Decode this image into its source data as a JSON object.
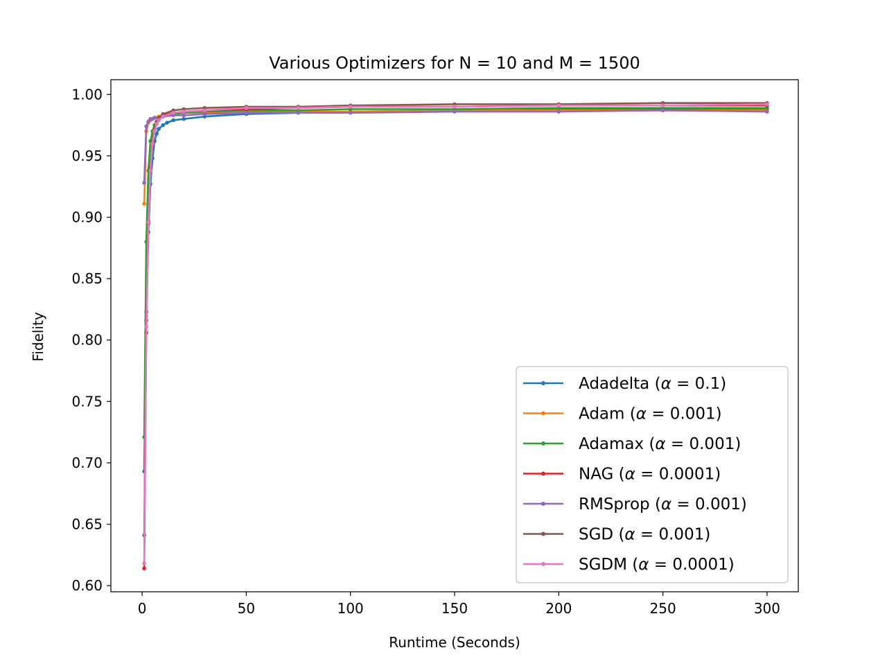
{
  "chart_data": {
    "type": "line",
    "title": "Various Optimizers for N = 10 and M = 1500",
    "xlabel": "Runtime (Seconds)",
    "ylabel": "Fidelity",
    "xlim": [
      -15,
      315
    ],
    "ylim": [
      0.595,
      1.012
    ],
    "xticks": [
      0,
      50,
      100,
      150,
      200,
      250,
      300
    ],
    "xtick_labels": [
      "0",
      "50",
      "100",
      "150",
      "200",
      "250",
      "300"
    ],
    "yticks": [
      0.6,
      0.65,
      0.7,
      0.75,
      0.8,
      0.85,
      0.9,
      0.95,
      1.0
    ],
    "ytick_labels": [
      "0.60",
      "0.65",
      "0.70",
      "0.75",
      "0.80",
      "0.85",
      "0.90",
      "0.95",
      "1.00"
    ],
    "grid": false,
    "legend_position": "lower-right",
    "series": [
      {
        "name": "Adadelta (α = 0.1)",
        "legend_prefix": "Adadelta (",
        "legend_suffix": " = 0.1)",
        "color": "#1f77b4",
        "x": [
          1,
          2,
          3,
          4,
          5,
          6,
          7,
          8,
          10,
          12,
          15,
          20,
          30,
          50,
          75,
          100,
          150,
          200,
          250,
          300
        ],
        "y": [
          0.693,
          0.823,
          0.888,
          0.927,
          0.948,
          0.962,
          0.968,
          0.972,
          0.975,
          0.977,
          0.979,
          0.98,
          0.982,
          0.984,
          0.985,
          0.986,
          0.987,
          0.988,
          0.988,
          0.988
        ]
      },
      {
        "name": "Adam (α = 0.001)",
        "legend_prefix": "Adam (",
        "legend_suffix": " = 0.001)",
        "color": "#ff7f0e",
        "x": [
          1,
          2,
          3,
          4,
          5,
          6,
          8,
          10,
          15,
          20,
          30,
          50,
          75,
          100,
          150,
          200,
          250,
          300
        ],
        "y": [
          0.911,
          0.97,
          0.977,
          0.979,
          0.98,
          0.981,
          0.982,
          0.983,
          0.984,
          0.985,
          0.985,
          0.986,
          0.986,
          0.986,
          0.987,
          0.987,
          0.987,
          0.987
        ]
      },
      {
        "name": "Adamax (α = 0.001)",
        "legend_prefix": "Adamax (",
        "legend_suffix": " = 0.001)",
        "color": "#2ca02c",
        "x": [
          1,
          2,
          3,
          4,
          5,
          6,
          7,
          8,
          10,
          15,
          20,
          30,
          50,
          75,
          100,
          150,
          200,
          250,
          300
        ],
        "y": [
          0.721,
          0.88,
          0.938,
          0.962,
          0.97,
          0.975,
          0.978,
          0.98,
          0.982,
          0.984,
          0.985,
          0.986,
          0.987,
          0.987,
          0.988,
          0.988,
          0.989,
          0.989,
          0.989
        ]
      },
      {
        "name": "NAG (α = 0.0001)",
        "legend_prefix": "NAG (",
        "legend_suffix": " = 0.0001)",
        "color": "#d62728",
        "x": [
          1,
          2,
          3,
          4,
          5,
          6,
          7,
          8,
          10,
          15,
          20,
          30,
          50,
          75,
          100,
          150,
          200,
          250,
          300
        ],
        "y": [
          0.614,
          0.806,
          0.895,
          0.94,
          0.962,
          0.972,
          0.977,
          0.98,
          0.983,
          0.985,
          0.986,
          0.987,
          0.988,
          0.989,
          0.99,
          0.99,
          0.991,
          0.991,
          0.991
        ]
      },
      {
        "name": "RMSprop (α = 0.001)",
        "legend_prefix": "RMSprop (",
        "legend_suffix": " = 0.001)",
        "color": "#9467bd",
        "x": [
          1,
          2,
          3,
          4,
          5,
          6,
          8,
          10,
          15,
          20,
          30,
          50,
          75,
          100,
          150,
          200,
          250,
          300
        ],
        "y": [
          0.928,
          0.974,
          0.978,
          0.98,
          0.98,
          0.981,
          0.981,
          0.982,
          0.983,
          0.983,
          0.984,
          0.985,
          0.985,
          0.985,
          0.986,
          0.986,
          0.987,
          0.986
        ]
      },
      {
        "name": "SGD (α = 0.001)",
        "legend_prefix": "SGD (",
        "legend_suffix": " = 0.001)",
        "color": "#8c564b",
        "x": [
          1,
          2,
          3,
          4,
          5,
          6,
          7,
          8,
          10,
          15,
          20,
          30,
          50,
          75,
          100,
          150,
          200,
          250,
          300
        ],
        "y": [
          0.641,
          0.816,
          0.897,
          0.94,
          0.962,
          0.972,
          0.978,
          0.981,
          0.984,
          0.987,
          0.988,
          0.989,
          0.99,
          0.99,
          0.991,
          0.992,
          0.992,
          0.993,
          0.993
        ]
      },
      {
        "name": "SGDM (α = 0.0001)",
        "legend_prefix": "SGDM (",
        "legend_suffix": " = 0.0001)",
        "color": "#e377c2",
        "x": [
          1,
          2,
          3,
          4,
          5,
          6,
          7,
          8,
          10,
          15,
          20,
          30,
          50,
          75,
          100,
          150,
          200,
          250,
          300
        ],
        "y": [
          0.618,
          0.811,
          0.896,
          0.938,
          0.96,
          0.97,
          0.976,
          0.979,
          0.982,
          0.985,
          0.986,
          0.987,
          0.989,
          0.989,
          0.99,
          0.99,
          0.991,
          0.991,
          0.992
        ]
      }
    ]
  }
}
